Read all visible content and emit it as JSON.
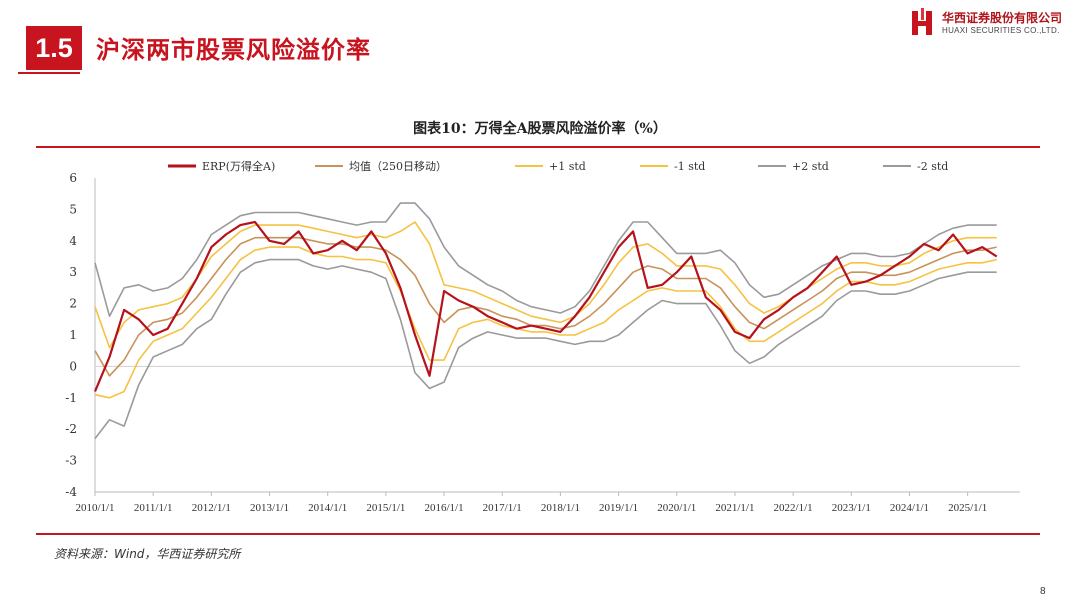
{
  "header": {
    "section_number": "1.5",
    "section_title": "沪深两市股票风险溢价率",
    "logo_cn": "华西证券股份有限公司",
    "logo_en": "HUAXI SECURITIES CO.,LTD."
  },
  "footer": {
    "source": "资料来源：Wind，华西证券研究所",
    "page_number": "8"
  },
  "colors": {
    "accent": "#c8141e",
    "erp": "#b5121b",
    "ma": "#c8925a",
    "std1": "#f5c242",
    "std2": "#9a9a9a"
  },
  "chart_data": {
    "type": "line",
    "title": "图表10：万得全A股票风险溢价率（%）",
    "xlabel": "",
    "ylabel": "",
    "ylim": [
      -4,
      6
    ],
    "yticks": [
      -4,
      -3,
      -2,
      -1,
      0,
      1,
      2,
      3,
      4,
      5,
      6
    ],
    "xticks": [
      "2010/1/1",
      "2011/1/1",
      "2012/1/1",
      "2013/1/1",
      "2014/1/1",
      "2015/1/1",
      "2016/1/1",
      "2017/1/1",
      "2018/1/1",
      "2019/1/1",
      "2020/1/1",
      "2021/1/1",
      "2022/1/1",
      "2023/1/1",
      "2024/1/1",
      "2025/1/1"
    ],
    "grid": false,
    "legend_position": "top",
    "x": [
      2010.0,
      2010.25,
      2010.5,
      2010.75,
      2011.0,
      2011.25,
      2011.5,
      2011.75,
      2012.0,
      2012.25,
      2012.5,
      2012.75,
      2013.0,
      2013.25,
      2013.5,
      2013.75,
      2014.0,
      2014.25,
      2014.5,
      2014.75,
      2015.0,
      2015.25,
      2015.5,
      2015.75,
      2016.0,
      2016.25,
      2016.5,
      2016.75,
      2017.0,
      2017.25,
      2017.5,
      2017.75,
      2018.0,
      2018.25,
      2018.5,
      2018.75,
      2019.0,
      2019.25,
      2019.5,
      2019.75,
      2020.0,
      2020.25,
      2020.5,
      2020.75,
      2021.0,
      2021.25,
      2021.5,
      2021.75,
      2022.0,
      2022.25,
      2022.5,
      2022.75,
      2023.0,
      2023.25,
      2023.5,
      2023.75,
      2024.0,
      2024.25,
      2024.5,
      2024.75,
      2025.0,
      2025.25,
      2025.5
    ],
    "series": [
      {
        "name": "ERP(万得全A)",
        "values": [
          -0.8,
          0.3,
          1.8,
          1.5,
          1.0,
          1.2,
          2.0,
          2.8,
          3.8,
          4.2,
          4.5,
          4.6,
          4.0,
          3.9,
          4.3,
          3.6,
          3.7,
          4.0,
          3.7,
          4.3,
          3.6,
          2.5,
          1.0,
          -0.3,
          2.4,
          2.1,
          1.9,
          1.6,
          1.4,
          1.2,
          1.3,
          1.2,
          1.1,
          1.6,
          2.2,
          3.0,
          3.8,
          4.3,
          2.5,
          2.6,
          3.0,
          3.5,
          2.2,
          1.8,
          1.1,
          0.9,
          1.5,
          1.8,
          2.2,
          2.5,
          3.0,
          3.5,
          2.6,
          2.7,
          2.9,
          3.2,
          3.5,
          3.9,
          3.7,
          4.2,
          3.6,
          3.8,
          3.5
        ]
      },
      {
        "name": "均值（250日移动）",
        "values": [
          0.5,
          -0.3,
          0.2,
          1.0,
          1.4,
          1.5,
          1.7,
          2.2,
          2.8,
          3.4,
          3.9,
          4.1,
          4.1,
          4.1,
          4.1,
          4.0,
          3.9,
          3.9,
          3.8,
          3.8,
          3.7,
          3.4,
          2.9,
          2.0,
          1.4,
          1.8,
          1.9,
          1.8,
          1.6,
          1.5,
          1.3,
          1.3,
          1.2,
          1.3,
          1.6,
          2.0,
          2.5,
          3.0,
          3.2,
          3.1,
          2.8,
          2.8,
          2.8,
          2.5,
          1.9,
          1.4,
          1.2,
          1.5,
          1.8,
          2.1,
          2.4,
          2.8,
          3.0,
          3.0,
          2.9,
          2.9,
          3.0,
          3.2,
          3.4,
          3.6,
          3.7,
          3.7,
          3.8
        ]
      },
      {
        "name": "+1 std",
        "values": [
          1.9,
          0.6,
          1.4,
          1.8,
          1.9,
          2.0,
          2.2,
          2.8,
          3.5,
          3.9,
          4.3,
          4.5,
          4.5,
          4.5,
          4.5,
          4.4,
          4.3,
          4.2,
          4.1,
          4.2,
          4.1,
          4.3,
          4.6,
          3.9,
          2.6,
          2.5,
          2.4,
          2.2,
          2.0,
          1.8,
          1.6,
          1.5,
          1.4,
          1.6,
          2.0,
          2.6,
          3.3,
          3.8,
          3.9,
          3.6,
          3.2,
          3.2,
          3.2,
          3.1,
          2.6,
          2.0,
          1.7,
          1.9,
          2.2,
          2.5,
          2.8,
          3.1,
          3.3,
          3.3,
          3.2,
          3.2,
          3.3,
          3.6,
          3.8,
          4.0,
          4.1,
          4.1,
          4.1
        ]
      },
      {
        "name": "-1 std",
        "values": [
          -0.9,
          -1.0,
          -0.8,
          0.2,
          0.8,
          1.0,
          1.2,
          1.7,
          2.2,
          2.8,
          3.4,
          3.7,
          3.8,
          3.8,
          3.8,
          3.6,
          3.5,
          3.5,
          3.4,
          3.4,
          3.3,
          2.4,
          1.2,
          0.2,
          0.2,
          1.2,
          1.4,
          1.5,
          1.3,
          1.2,
          1.1,
          1.1,
          1.0,
          1.0,
          1.2,
          1.4,
          1.8,
          2.1,
          2.4,
          2.5,
          2.4,
          2.4,
          2.4,
          1.9,
          1.2,
          0.8,
          0.8,
          1.1,
          1.4,
          1.7,
          2.0,
          2.4,
          2.7,
          2.7,
          2.6,
          2.6,
          2.7,
          2.9,
          3.1,
          3.2,
          3.3,
          3.3,
          3.4
        ]
      },
      {
        "name": "+2 std",
        "values": [
          3.3,
          1.6,
          2.5,
          2.6,
          2.4,
          2.5,
          2.8,
          3.4,
          4.2,
          4.5,
          4.8,
          4.9,
          4.9,
          4.9,
          4.9,
          4.8,
          4.7,
          4.6,
          4.5,
          4.6,
          4.6,
          5.2,
          5.2,
          4.7,
          3.8,
          3.2,
          2.9,
          2.6,
          2.4,
          2.1,
          1.9,
          1.8,
          1.7,
          1.9,
          2.4,
          3.2,
          4.0,
          4.6,
          4.6,
          4.1,
          3.6,
          3.6,
          3.6,
          3.7,
          3.3,
          2.6,
          2.2,
          2.3,
          2.6,
          2.9,
          3.2,
          3.4,
          3.6,
          3.6,
          3.5,
          3.5,
          3.6,
          3.9,
          4.2,
          4.4,
          4.5,
          4.5,
          4.5
        ]
      },
      {
        "name": "-2 std",
        "values": [
          -2.3,
          -1.7,
          -1.9,
          -0.6,
          0.3,
          0.5,
          0.7,
          1.2,
          1.5,
          2.3,
          3.0,
          3.3,
          3.4,
          3.4,
          3.4,
          3.2,
          3.1,
          3.2,
          3.1,
          3.0,
          2.8,
          1.5,
          -0.2,
          -0.7,
          -0.5,
          0.6,
          0.9,
          1.1,
          1.0,
          0.9,
          0.9,
          0.9,
          0.8,
          0.7,
          0.8,
          0.8,
          1.0,
          1.4,
          1.8,
          2.1,
          2.0,
          2.0,
          2.0,
          1.3,
          0.5,
          0.1,
          0.3,
          0.7,
          1.0,
          1.3,
          1.6,
          2.1,
          2.4,
          2.4,
          2.3,
          2.3,
          2.4,
          2.6,
          2.8,
          2.9,
          3.0,
          3.0,
          3.0
        ]
      }
    ]
  }
}
